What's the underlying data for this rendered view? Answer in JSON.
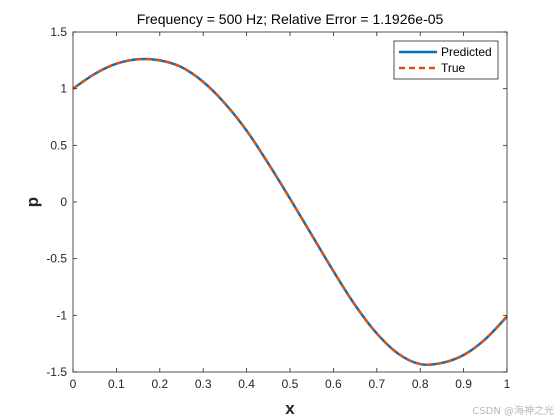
{
  "chart_data": {
    "type": "line",
    "title": "Frequency = 500 Hz; Relative Error = 1.1926e-05",
    "xlabel": "x",
    "ylabel": "p",
    "xlim": [
      0,
      1
    ],
    "ylim": [
      -1.5,
      1.5
    ],
    "xticks": [
      "0",
      "0.1",
      "0.2",
      "0.3",
      "0.4",
      "0.5",
      "0.6",
      "0.7",
      "0.8",
      "0.9",
      "1"
    ],
    "yticks": [
      "-1.5",
      "-1",
      "-0.5",
      "0",
      "0.5",
      "1",
      "1.5"
    ],
    "grid": false,
    "legend_position": "top-right",
    "series": [
      {
        "name": "Predicted",
        "style": "solid",
        "color": "#0072BD",
        "x": [
          0,
          0.05,
          0.1,
          0.15,
          0.2,
          0.25,
          0.3,
          0.35,
          0.4,
          0.45,
          0.5,
          0.55,
          0.6,
          0.65,
          0.7,
          0.75,
          0.8,
          0.85,
          0.9,
          0.95,
          1
        ],
        "y": [
          1.0,
          1.13,
          1.22,
          1.26,
          1.25,
          1.19,
          1.06,
          0.87,
          0.63,
          0.34,
          0.03,
          -0.29,
          -0.61,
          -0.91,
          -1.16,
          -1.34,
          -1.43,
          -1.42,
          -1.35,
          -1.21,
          -1.01
        ]
      },
      {
        "name": "True",
        "style": "dashed",
        "color": "#D95319",
        "x": [
          0,
          0.05,
          0.1,
          0.15,
          0.2,
          0.25,
          0.3,
          0.35,
          0.4,
          0.45,
          0.5,
          0.55,
          0.6,
          0.65,
          0.7,
          0.75,
          0.8,
          0.85,
          0.9,
          0.95,
          1
        ],
        "y": [
          1.0,
          1.13,
          1.22,
          1.26,
          1.25,
          1.19,
          1.06,
          0.87,
          0.63,
          0.34,
          0.03,
          -0.29,
          -0.61,
          -0.91,
          -1.16,
          -1.34,
          -1.43,
          -1.42,
          -1.35,
          -1.21,
          -1.01
        ]
      }
    ]
  },
  "watermark": "CSDN @海神之光"
}
